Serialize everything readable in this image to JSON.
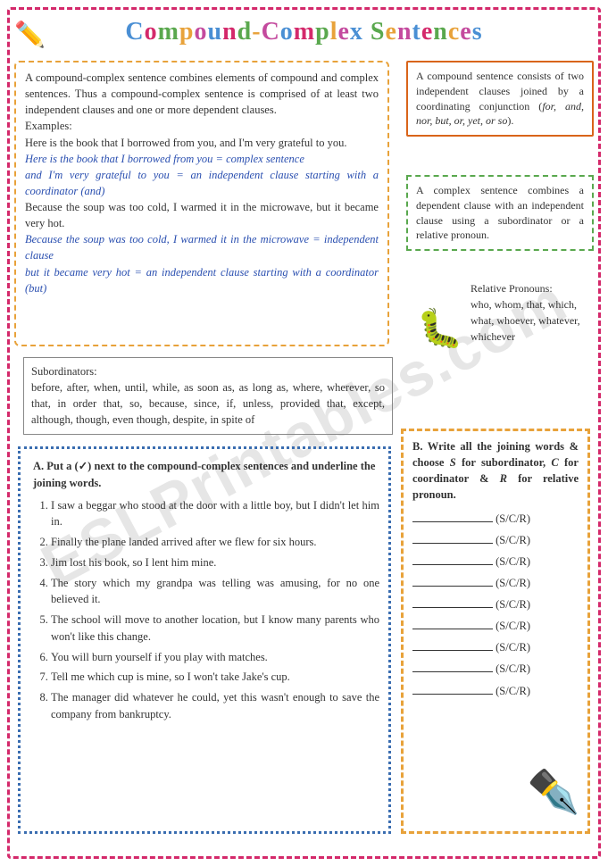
{
  "title_text": "Compound-Complex Sentences",
  "watermark": "ESLPrintables.com",
  "main": {
    "p1": "A compound-complex sentence combines elements of compound and complex sentences. Thus a compound-complex sentence is comprised of at least two independent clauses and one or more dependent clauses.",
    "p2": "Examples:",
    "p3": "Here is the book that I borrowed from you, and I'm very grateful to you.",
    "p4": "Here is the book that I borrowed from you = complex sentence",
    "p5": "and I'm very grateful to you = an independent clause starting with a coordinator (and)",
    "p6": "Because the soup was too cold, I warmed it in the microwave, but it became very hot.",
    "p7": "Because the soup was too cold, I warmed it in the microwave = independent clause",
    "p8": "but it became very hot = an independent clause starting with a coordinator (but)"
  },
  "compound": {
    "text_a": "A compound sentence consists of two independent clauses joined by a coordinating conjunction (",
    "conj": "for, and, nor, but, or, yet, or so",
    "text_b": ")."
  },
  "complex": "A complex sentence combines a dependent clause with an independent clause using a subordinator or a relative pronoun.",
  "relpron": {
    "label": "Relative Pronouns:",
    "list": "who, whom, that, which, what, whoever, whatever, whichever"
  },
  "subordinators": {
    "label": "Subordinators:",
    "list": "before, after, when, until, while, as soon as, as long as, where, wherever, so that, in order that, so, because, since, if, unless, provided that, except, although, though, even though, despite, in spite of"
  },
  "exA": {
    "letter": "A.",
    "head": "Put a (✓) next to the compound-complex sentences and underline the joining words.",
    "items": [
      "I saw a beggar who stood at the door with a little boy, but I didn't let him in.",
      "Finally the plane landed arrived after we flew for six hours.",
      "Jim lost his book, so I lent him mine.",
      "The story which my grandpa was telling was amusing, for no one believed it.",
      "The school will move to another location, but I know many parents who won't like this change.",
      "You will burn yourself if you play with matches.",
      "Tell me which cup is mine, so I won't take Jake's cup.",
      "The manager did whatever he could, yet this wasn't enough to save the company from bankruptcy."
    ]
  },
  "exB": {
    "letter": "B.",
    "head_a": "Write all the joining words & choose ",
    "head_b": " for subordinator, ",
    "head_c": " for coordinator & ",
    "head_d": " for relative pronoun.",
    "s": "S",
    "c": "C",
    "r": "R",
    "tag": "(S/C/R)",
    "count": 9
  },
  "colors": {
    "border_outer": "#d4296b",
    "border_main": "#e8a23a",
    "border_compound": "#d9641a",
    "border_complex": "#5aa84e",
    "border_exA": "#3a6db0",
    "border_exB": "#e8a23a",
    "italic_text": "#2a4fb0"
  }
}
